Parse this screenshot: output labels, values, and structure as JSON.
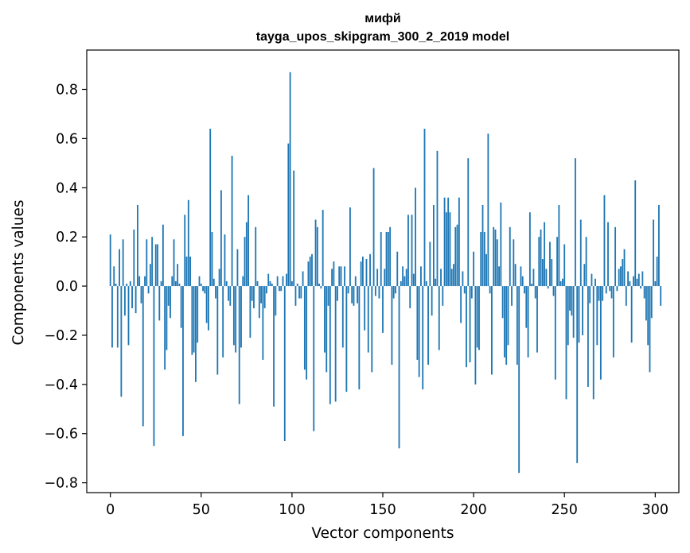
{
  "chart_data": {
    "type": "bar",
    "title_lines": [
      "мифй",
      "tayga_upos_skipgram_300_2_2019 model"
    ],
    "xlabel": "Vector components",
    "ylabel": "Components values",
    "xlim": [
      -13,
      313
    ],
    "ylim": [
      -0.84,
      0.96
    ],
    "xticks": [
      0,
      50,
      100,
      150,
      200,
      250,
      300
    ],
    "yticks": [
      -0.8,
      -0.6,
      -0.4,
      -0.2,
      0.0,
      0.2,
      0.4,
      0.6,
      0.8
    ],
    "ytick_labels": [
      "−0.8",
      "−0.6",
      "−0.4",
      "−0.2",
      "0.0",
      "0.2",
      "0.4",
      "0.6",
      "0.8"
    ],
    "bar_color": "#1f77b4",
    "grid": false,
    "values": [
      0.21,
      -0.25,
      0.08,
      0.01,
      -0.25,
      0.15,
      -0.45,
      0.19,
      -0.12,
      0.01,
      -0.24,
      0.02,
      -0.09,
      0.23,
      -0.11,
      0.33,
      0.04,
      -0.07,
      -0.57,
      0.04,
      0.19,
      -0.03,
      0.09,
      0.2,
      -0.65,
      0.17,
      0.17,
      -0.14,
      0.02,
      0.25,
      -0.34,
      -0.26,
      -0.08,
      -0.13,
      0.04,
      0.19,
      0.02,
      0.09,
      0.01,
      -0.17,
      -0.61,
      0.29,
      0.12,
      0.35,
      0.12,
      -0.28,
      -0.27,
      -0.39,
      -0.23,
      0.04,
      0.01,
      -0.02,
      -0.03,
      -0.15,
      -0.18,
      0.64,
      0.22,
      0.03,
      -0.05,
      -0.36,
      0.07,
      0.39,
      -0.29,
      0.21,
      0.02,
      -0.06,
      -0.08,
      0.53,
      -0.24,
      -0.27,
      0.15,
      -0.48,
      -0.25,
      0.04,
      0.2,
      0.26,
      0.37,
      -0.21,
      -0.06,
      -0.09,
      0.24,
      0.02,
      -0.13,
      -0.07,
      -0.3,
      -0.09,
      -0.03,
      0.05,
      0.02,
      0.01,
      -0.49,
      -0.12,
      0.04,
      -0.02,
      -0.02,
      0.04,
      -0.63,
      0.05,
      0.58,
      0.87,
      0.02,
      0.47,
      -0.08,
      0.01,
      -0.05,
      -0.05,
      0.06,
      -0.34,
      -0.38,
      0.1,
      0.12,
      0.13,
      -0.59,
      0.27,
      0.24,
      0.01,
      -0.01,
      0.31,
      -0.27,
      -0.35,
      -0.08,
      -0.48,
      0.07,
      0.1,
      -0.47,
      -0.06,
      0.08,
      0.08,
      -0.25,
      0.08,
      -0.43,
      -0.03,
      0.32,
      -0.07,
      -0.08,
      0.04,
      -0.07,
      -0.42,
      0.1,
      0.12,
      -0.18,
      0.11,
      -0.27,
      0.13,
      -0.35,
      0.48,
      -0.04,
      0.07,
      -0.05,
      0.22,
      -0.19,
      0.07,
      0.22,
      0.22,
      0.24,
      -0.32,
      -0.05,
      -0.03,
      0.14,
      -0.66,
      0.02,
      0.08,
      0.04,
      0.07,
      0.29,
      -0.09,
      0.29,
      0.05,
      0.4,
      -0.3,
      -0.37,
      0.08,
      -0.42,
      0.64,
      0.02,
      -0.32,
      0.18,
      -0.12,
      0.33,
      0.03,
      0.55,
      -0.26,
      0.07,
      -0.08,
      0.36,
      0.3,
      0.36,
      0.3,
      0.07,
      0.09,
      0.24,
      0.25,
      0.36,
      -0.15,
      0.06,
      -0.03,
      -0.33,
      0.52,
      -0.31,
      -0.05,
      0.14,
      -0.4,
      -0.25,
      -0.26,
      0.22,
      0.33,
      0.22,
      0.13,
      0.62,
      -0.03,
      -0.36,
      0.24,
      0.23,
      0.19,
      0.08,
      0.34,
      -0.13,
      -0.29,
      -0.32,
      -0.24,
      0.24,
      -0.08,
      0.19,
      0.09,
      -0.32,
      -0.76,
      0.08,
      0.04,
      -0.03,
      -0.17,
      -0.29,
      0.3,
      0.01,
      0.07,
      -0.05,
      -0.27,
      0.2,
      0.23,
      0.11,
      0.26,
      0.07,
      -0.01,
      0.18,
      0.11,
      -0.04,
      -0.38,
      0.2,
      0.33,
      0.02,
      0.03,
      0.17,
      -0.46,
      -0.24,
      -0.1,
      -0.12,
      -0.21,
      0.52,
      -0.72,
      -0.23,
      0.27,
      -0.2,
      0.09,
      0.2,
      -0.41,
      -0.07,
      0.05,
      -0.46,
      0.03,
      -0.24,
      -0.06,
      -0.38,
      -0.06,
      0.37,
      -0.03,
      0.26,
      -0.02,
      -0.05,
      -0.29,
      0.24,
      -0.02,
      0.07,
      0.08,
      0.11,
      0.15,
      -0.08,
      0.06,
      0.02,
      -0.23,
      0.04,
      0.43,
      0.03,
      0.05,
      -0.01,
      0.06,
      -0.05,
      -0.14,
      -0.24,
      -0.35,
      -0.13,
      0.27,
      0.02,
      0.12,
      0.33,
      -0.08
    ]
  }
}
